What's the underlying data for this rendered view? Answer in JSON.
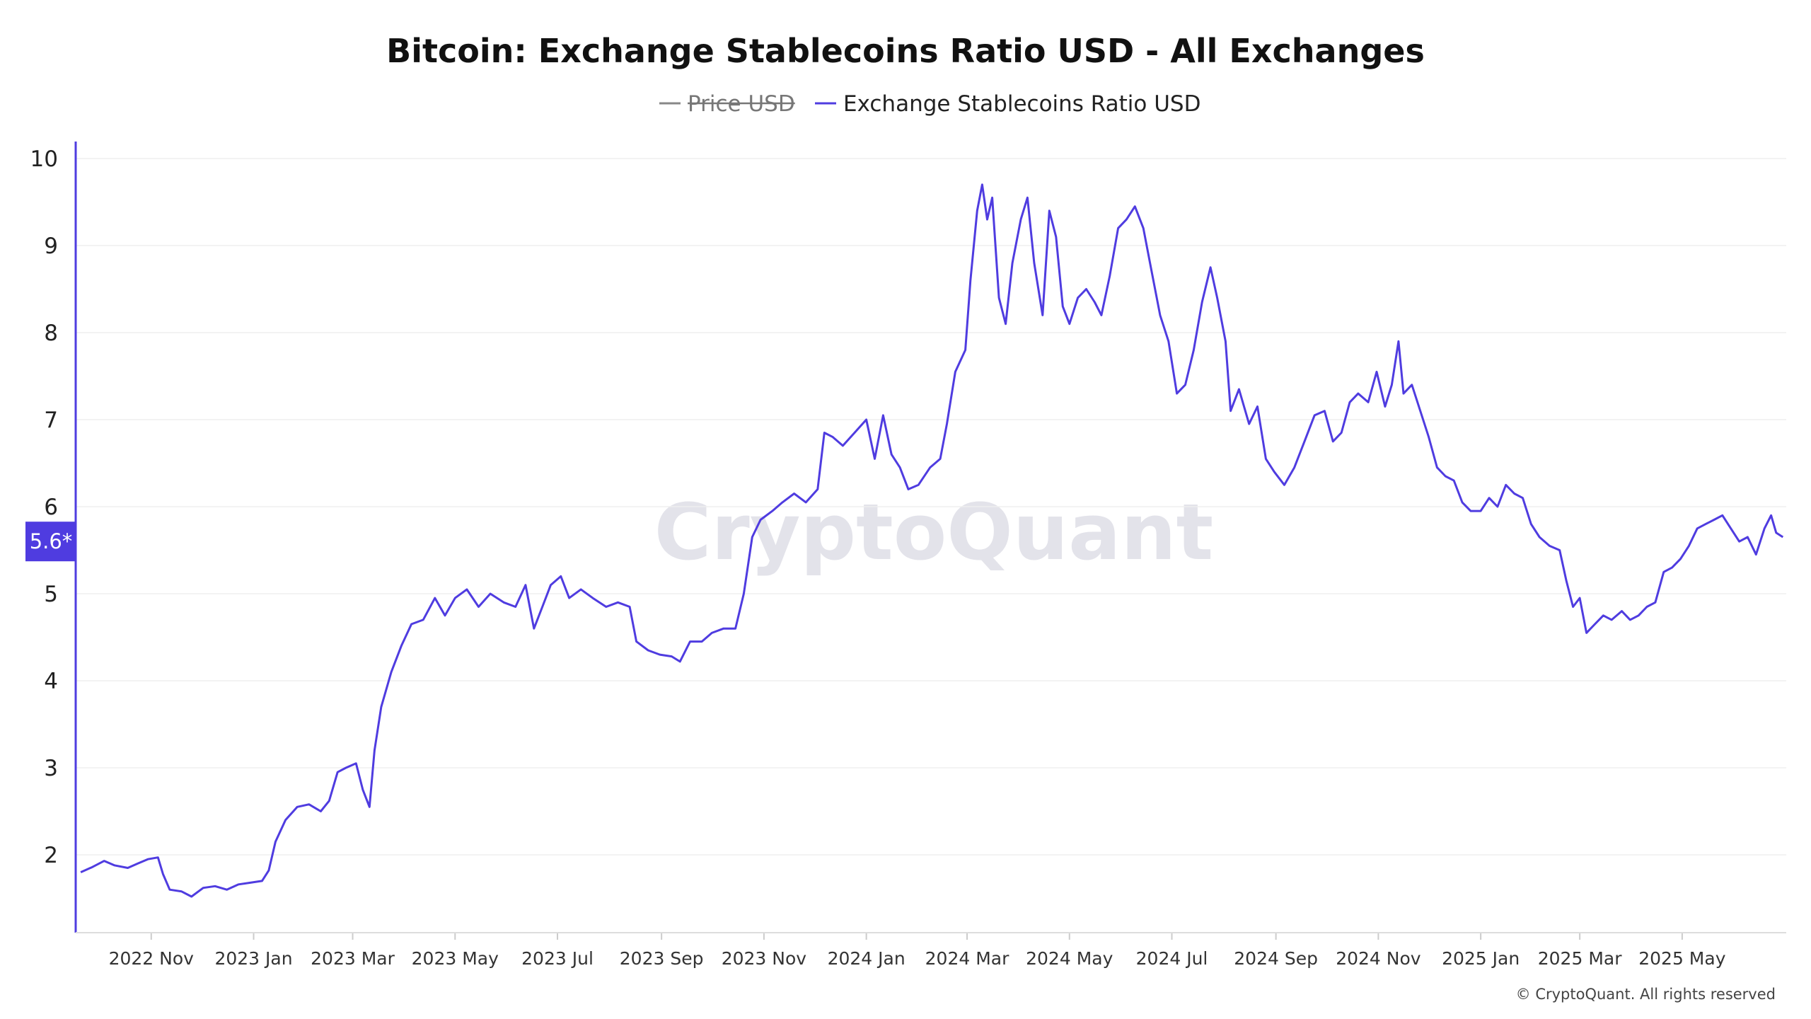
{
  "colors": {
    "series": "#4f3ce0",
    "axis": "#4f3ce0",
    "grid": "#efefef",
    "hidden_legend": "#888888",
    "badge_bg": "#4f3ce0"
  },
  "watermark": "CryptoQuant",
  "credit": "© CryptoQuant. All rights reserved",
  "current_value_badge": "5.6*",
  "chart_data": {
    "type": "line",
    "title": "Bitcoin: Exchange Stablecoins Ratio USD - All Exchanges",
    "legend": [
      {
        "name": "Price USD",
        "visible": false
      },
      {
        "name": "Exchange Stablecoins Ratio USD",
        "visible": true
      }
    ],
    "legend_placement": "top-center",
    "grid": true,
    "ylim": [
      1,
      10
    ],
    "yticks": [
      2,
      3,
      4,
      5,
      6,
      7,
      8,
      9,
      10
    ],
    "xlim": [
      "2022-09-17",
      "2025-07-02"
    ],
    "xticks": [
      {
        "label": "2022 Nov",
        "date": "2022-11-01"
      },
      {
        "label": "2023 Jan",
        "date": "2023-01-01"
      },
      {
        "label": "2023 Mar",
        "date": "2023-03-01"
      },
      {
        "label": "2023 May",
        "date": "2023-05-01"
      },
      {
        "label": "2023 Jul",
        "date": "2023-07-01"
      },
      {
        "label": "2023 Sep",
        "date": "2023-09-01"
      },
      {
        "label": "2023 Nov",
        "date": "2023-11-01"
      },
      {
        "label": "2024 Jan",
        "date": "2024-01-01"
      },
      {
        "label": "2024 Mar",
        "date": "2024-03-01"
      },
      {
        "label": "2024 May",
        "date": "2024-05-01"
      },
      {
        "label": "2024 Jul",
        "date": "2024-07-01"
      },
      {
        "label": "2024 Sep",
        "date": "2024-09-01"
      },
      {
        "label": "2024 Nov",
        "date": "2024-11-01"
      },
      {
        "label": "2025 Jan",
        "date": "2025-01-01"
      },
      {
        "label": "2025 Mar",
        "date": "2025-03-01"
      },
      {
        "label": "2025 May",
        "date": "2025-05-01"
      }
    ],
    "series": [
      {
        "name": "Exchange Stablecoins Ratio USD",
        "points": [
          [
            "2022-09-20",
            1.8
          ],
          [
            "2022-09-27",
            1.86
          ],
          [
            "2022-10-04",
            1.93
          ],
          [
            "2022-10-10",
            1.88
          ],
          [
            "2022-10-18",
            1.85
          ],
          [
            "2022-10-24",
            1.9
          ],
          [
            "2022-10-30",
            1.95
          ],
          [
            "2022-11-05",
            1.97
          ],
          [
            "2022-11-08",
            1.78
          ],
          [
            "2022-11-12",
            1.6
          ],
          [
            "2022-11-19",
            1.58
          ],
          [
            "2022-11-25",
            1.52
          ],
          [
            "2022-12-02",
            1.62
          ],
          [
            "2022-12-09",
            1.64
          ],
          [
            "2022-12-16",
            1.6
          ],
          [
            "2022-12-23",
            1.66
          ],
          [
            "2022-12-30",
            1.68
          ],
          [
            "2023-01-06",
            1.7
          ],
          [
            "2023-01-10",
            1.82
          ],
          [
            "2023-01-14",
            2.15
          ],
          [
            "2023-01-20",
            2.4
          ],
          [
            "2023-01-27",
            2.55
          ],
          [
            "2023-02-03",
            2.58
          ],
          [
            "2023-02-10",
            2.5
          ],
          [
            "2023-02-15",
            2.62
          ],
          [
            "2023-02-20",
            2.95
          ],
          [
            "2023-02-25",
            3.0
          ],
          [
            "2023-03-03",
            3.05
          ],
          [
            "2023-03-07",
            2.75
          ],
          [
            "2023-03-11",
            2.55
          ],
          [
            "2023-03-14",
            3.2
          ],
          [
            "2023-03-18",
            3.7
          ],
          [
            "2023-03-24",
            4.1
          ],
          [
            "2023-03-30",
            4.4
          ],
          [
            "2023-04-05",
            4.65
          ],
          [
            "2023-04-12",
            4.7
          ],
          [
            "2023-04-19",
            4.95
          ],
          [
            "2023-04-25",
            4.75
          ],
          [
            "2023-05-01",
            4.95
          ],
          [
            "2023-05-08",
            5.05
          ],
          [
            "2023-05-15",
            4.85
          ],
          [
            "2023-05-22",
            5.0
          ],
          [
            "2023-05-30",
            4.9
          ],
          [
            "2023-06-06",
            4.85
          ],
          [
            "2023-06-12",
            5.1
          ],
          [
            "2023-06-17",
            4.6
          ],
          [
            "2023-06-22",
            4.85
          ],
          [
            "2023-06-27",
            5.1
          ],
          [
            "2023-07-03",
            5.2
          ],
          [
            "2023-07-08",
            4.95
          ],
          [
            "2023-07-15",
            5.05
          ],
          [
            "2023-07-22",
            4.95
          ],
          [
            "2023-07-30",
            4.85
          ],
          [
            "2023-08-06",
            4.9
          ],
          [
            "2023-08-13",
            4.85
          ],
          [
            "2023-08-17",
            4.45
          ],
          [
            "2023-08-24",
            4.35
          ],
          [
            "2023-08-31",
            4.3
          ],
          [
            "2023-09-07",
            4.28
          ],
          [
            "2023-09-12",
            4.22
          ],
          [
            "2023-09-18",
            4.45
          ],
          [
            "2023-09-25",
            4.45
          ],
          [
            "2023-10-01",
            4.55
          ],
          [
            "2023-10-08",
            4.6
          ],
          [
            "2023-10-15",
            4.6
          ],
          [
            "2023-10-20",
            5.0
          ],
          [
            "2023-10-25",
            5.65
          ],
          [
            "2023-10-30",
            5.85
          ],
          [
            "2023-11-06",
            5.95
          ],
          [
            "2023-11-12",
            6.05
          ],
          [
            "2023-11-19",
            6.15
          ],
          [
            "2023-11-26",
            6.05
          ],
          [
            "2023-12-03",
            6.2
          ],
          [
            "2023-12-07",
            6.85
          ],
          [
            "2023-12-12",
            6.8
          ],
          [
            "2023-12-18",
            6.7
          ],
          [
            "2023-12-25",
            6.85
          ],
          [
            "2024-01-01",
            7.0
          ],
          [
            "2024-01-06",
            6.55
          ],
          [
            "2024-01-11",
            7.05
          ],
          [
            "2024-01-16",
            6.6
          ],
          [
            "2024-01-21",
            6.45
          ],
          [
            "2024-01-26",
            6.2
          ],
          [
            "2024-02-01",
            6.25
          ],
          [
            "2024-02-08",
            6.45
          ],
          [
            "2024-02-14",
            6.55
          ],
          [
            "2024-02-18",
            6.95
          ],
          [
            "2024-02-23",
            7.55
          ],
          [
            "2024-02-29",
            7.8
          ],
          [
            "2024-03-03",
            8.6
          ],
          [
            "2024-03-07",
            9.4
          ],
          [
            "2024-03-10",
            9.7
          ],
          [
            "2024-03-13",
            9.3
          ],
          [
            "2024-03-16",
            9.55
          ],
          [
            "2024-03-20",
            8.4
          ],
          [
            "2024-03-24",
            8.1
          ],
          [
            "2024-03-28",
            8.8
          ],
          [
            "2024-04-02",
            9.3
          ],
          [
            "2024-04-06",
            9.55
          ],
          [
            "2024-04-10",
            8.8
          ],
          [
            "2024-04-15",
            8.2
          ],
          [
            "2024-04-19",
            9.4
          ],
          [
            "2024-04-23",
            9.1
          ],
          [
            "2024-04-27",
            8.3
          ],
          [
            "2024-05-01",
            8.1
          ],
          [
            "2024-05-06",
            8.4
          ],
          [
            "2024-05-11",
            8.5
          ],
          [
            "2024-05-16",
            8.35
          ],
          [
            "2024-05-20",
            8.2
          ],
          [
            "2024-05-25",
            8.65
          ],
          [
            "2024-05-30",
            9.2
          ],
          [
            "2024-06-04",
            9.3
          ],
          [
            "2024-06-09",
            9.45
          ],
          [
            "2024-06-14",
            9.2
          ],
          [
            "2024-06-19",
            8.7
          ],
          [
            "2024-06-24",
            8.2
          ],
          [
            "2024-06-29",
            7.9
          ],
          [
            "2024-07-04",
            7.3
          ],
          [
            "2024-07-09",
            7.4
          ],
          [
            "2024-07-14",
            7.8
          ],
          [
            "2024-07-19",
            8.35
          ],
          [
            "2024-07-24",
            8.75
          ],
          [
            "2024-07-28",
            8.4
          ],
          [
            "2024-08-02",
            7.9
          ],
          [
            "2024-08-05",
            7.1
          ],
          [
            "2024-08-10",
            7.35
          ],
          [
            "2024-08-16",
            6.95
          ],
          [
            "2024-08-21",
            7.15
          ],
          [
            "2024-08-26",
            6.55
          ],
          [
            "2024-08-31",
            6.4
          ],
          [
            "2024-09-06",
            6.25
          ],
          [
            "2024-09-12",
            6.45
          ],
          [
            "2024-09-18",
            6.75
          ],
          [
            "2024-09-24",
            7.05
          ],
          [
            "2024-09-30",
            7.1
          ],
          [
            "2024-10-05",
            6.75
          ],
          [
            "2024-10-10",
            6.85
          ],
          [
            "2024-10-15",
            7.2
          ],
          [
            "2024-10-20",
            7.3
          ],
          [
            "2024-10-26",
            7.2
          ],
          [
            "2024-10-31",
            7.55
          ],
          [
            "2024-11-05",
            7.15
          ],
          [
            "2024-11-09",
            7.4
          ],
          [
            "2024-11-13",
            7.9
          ],
          [
            "2024-11-16",
            7.3
          ],
          [
            "2024-11-21",
            7.4
          ],
          [
            "2024-11-26",
            7.1
          ],
          [
            "2024-12-01",
            6.8
          ],
          [
            "2024-12-06",
            6.45
          ],
          [
            "2024-12-11",
            6.35
          ],
          [
            "2024-12-16",
            6.3
          ],
          [
            "2024-12-21",
            6.05
          ],
          [
            "2024-12-26",
            5.95
          ],
          [
            "2025-01-01",
            5.95
          ],
          [
            "2025-01-06",
            6.1
          ],
          [
            "2025-01-11",
            6.0
          ],
          [
            "2025-01-16",
            6.25
          ],
          [
            "2025-01-21",
            6.15
          ],
          [
            "2025-01-26",
            6.1
          ],
          [
            "2025-01-31",
            5.8
          ],
          [
            "2025-02-05",
            5.65
          ],
          [
            "2025-02-11",
            5.55
          ],
          [
            "2025-02-17",
            5.5
          ],
          [
            "2025-02-21",
            5.15
          ],
          [
            "2025-02-25",
            4.85
          ],
          [
            "2025-03-01",
            4.95
          ],
          [
            "2025-03-05",
            4.55
          ],
          [
            "2025-03-10",
            4.65
          ],
          [
            "2025-03-15",
            4.75
          ],
          [
            "2025-03-20",
            4.7
          ],
          [
            "2025-03-26",
            4.8
          ],
          [
            "2025-03-31",
            4.7
          ],
          [
            "2025-04-05",
            4.75
          ],
          [
            "2025-04-10",
            4.85
          ],
          [
            "2025-04-15",
            4.9
          ],
          [
            "2025-04-20",
            5.25
          ],
          [
            "2025-04-25",
            5.3
          ],
          [
            "2025-04-30",
            5.4
          ],
          [
            "2025-05-05",
            5.55
          ],
          [
            "2025-05-10",
            5.75
          ],
          [
            "2025-05-15",
            5.8
          ],
          [
            "2025-05-20",
            5.85
          ],
          [
            "2025-05-25",
            5.9
          ],
          [
            "2025-05-30",
            5.75
          ],
          [
            "2025-06-04",
            5.6
          ],
          [
            "2025-06-09",
            5.65
          ],
          [
            "2025-06-14",
            5.45
          ],
          [
            "2025-06-19",
            5.75
          ],
          [
            "2025-06-23",
            5.9
          ],
          [
            "2025-06-26",
            5.7
          ],
          [
            "2025-06-30",
            5.65
          ]
        ]
      }
    ],
    "current_value": 5.6
  }
}
